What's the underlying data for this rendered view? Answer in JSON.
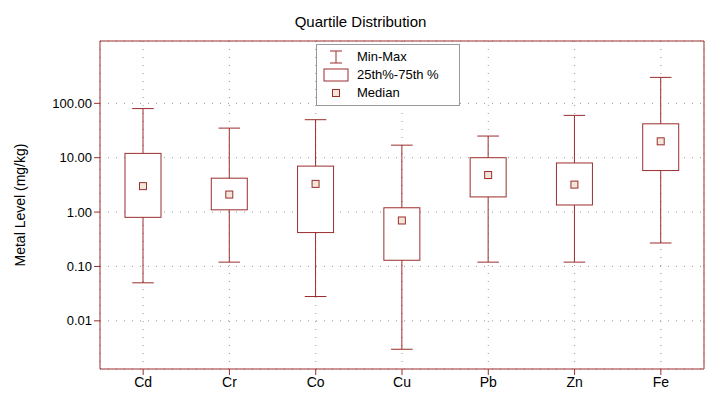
{
  "chart_data": {
    "type": "box",
    "title": "Quartile Distribution",
    "y_label": "Metal Level (mg/kg)",
    "categories": [
      "Cd",
      "Cr",
      "Co",
      "Cu",
      "Pb",
      "Zn",
      "Fe"
    ],
    "min": [
      0.05,
      0.12,
      0.028,
      0.003,
      0.12,
      0.12,
      0.27
    ],
    "q1": [
      0.8,
      1.1,
      0.42,
      0.13,
      1.9,
      1.35,
      5.8
    ],
    "median": [
      3,
      2.1,
      3.3,
      0.7,
      4.8,
      3.2,
      20
    ],
    "q3": [
      12,
      4.2,
      7,
      1.2,
      10,
      8,
      42
    ],
    "max": [
      80,
      35,
      50,
      17,
      25,
      60,
      300
    ],
    "color": "#9b2d2d",
    "log": "y",
    "ylim": [
      0.0013,
      1400
    ],
    "yticks": [
      0.01,
      {
        "value": 0.1,
        "label": "0.10"
      },
      {
        "value": 1,
        "label": "1.00"
      },
      {
        "value": 10,
        "label": "10.00"
      },
      {
        "value": 100,
        "label": "100.00"
      }
    ],
    "grid": true,
    "legend": "top",
    "legend_labels": [
      "Min-Max",
      "25th%-75th %",
      "Median"
    ]
  }
}
